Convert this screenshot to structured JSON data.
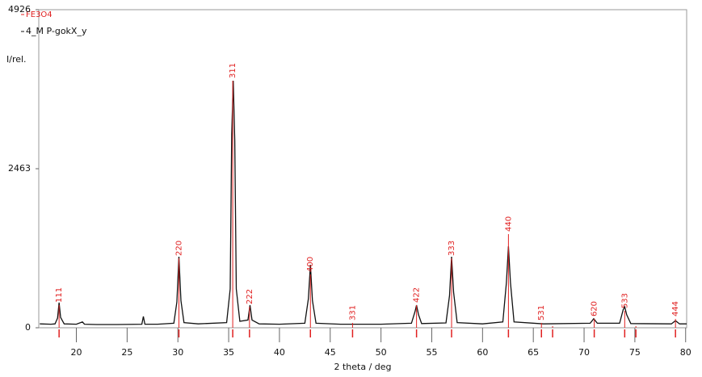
{
  "chart_data": {
    "type": "line",
    "xlabel": "2 theta / deg",
    "ylabel": "I/rel.",
    "xlim": [
      16.3,
      80.1
    ],
    "ylim": [
      0,
      4926
    ],
    "xticks": [
      20,
      25,
      30,
      35,
      40,
      45,
      50,
      55,
      60,
      65,
      70,
      75,
      80
    ],
    "yticks": [
      0,
      2463,
      4926
    ],
    "legend": "upper left",
    "series": [
      {
        "name": "4_M P-gokX_y",
        "color": "#111111",
        "style": "line",
        "x": [
          16.4,
          17.5,
          17.9,
          18.15,
          18.3,
          18.45,
          18.8,
          20.0,
          20.6,
          20.8,
          22,
          24,
          26.45,
          26.6,
          26.75,
          28,
          29.6,
          29.9,
          30.1,
          30.3,
          30.6,
          32,
          34.8,
          35.15,
          35.3,
          35.45,
          35.6,
          35.75,
          36.1,
          36.9,
          37.1,
          37.3,
          38,
          40,
          42.5,
          42.85,
          43.05,
          43.25,
          43.6,
          46,
          48,
          50,
          53.0,
          53.35,
          53.5,
          53.7,
          54.0,
          56.4,
          56.75,
          56.95,
          57.15,
          57.5,
          60,
          62.0,
          62.35,
          62.55,
          62.75,
          63.1,
          66,
          70.6,
          70.95,
          71.3,
          73.5,
          73.85,
          74.0,
          74.2,
          74.6,
          78.6,
          79.0,
          79.4,
          80.1
        ],
        "values": [
          60,
          55,
          60,
          150,
          390,
          160,
          60,
          55,
          90,
          55,
          50,
          50,
          55,
          175,
          55,
          55,
          70,
          400,
          1100,
          420,
          80,
          60,
          80,
          600,
          3000,
          3826,
          2900,
          600,
          100,
          120,
          350,
          120,
          60,
          55,
          70,
          450,
          975,
          420,
          70,
          55,
          55,
          55,
          70,
          250,
          350,
          200,
          65,
          75,
          500,
          1100,
          550,
          80,
          60,
          90,
          700,
          1260,
          700,
          90,
          60,
          70,
          140,
          70,
          70,
          280,
          325,
          200,
          65,
          60,
          110,
          60,
          60
        ]
      },
      {
        "name": "FE3O4",
        "color": "#e02020",
        "style": "stick",
        "x": [
          18.3,
          30.1,
          35.4,
          37.05,
          43.05,
          47.2,
          53.5,
          56.95,
          62.55,
          65.8,
          66.9,
          71.0,
          74.0,
          75.1,
          79.0
        ],
        "values": [
          350,
          1075,
          3826,
          325,
          825,
          75,
          350,
          1075,
          1450,
          75,
          25,
          137,
          262,
          25,
          137
        ],
        "labels": [
          "111",
          "220",
          "311",
          "222",
          "400",
          "331",
          "422",
          "333",
          "440",
          "531",
          null,
          "620",
          "533",
          null,
          "444"
        ]
      }
    ]
  }
}
